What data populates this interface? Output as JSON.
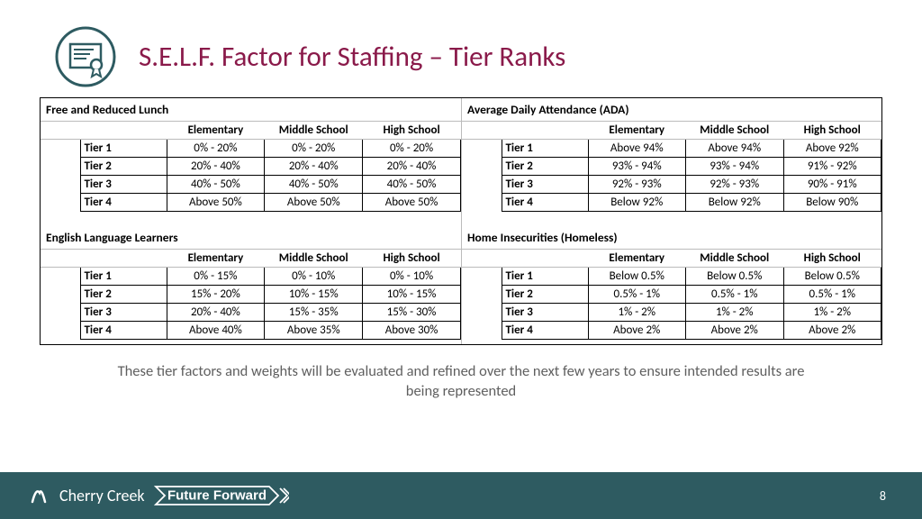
{
  "colors": {
    "title": "#8a1a4a",
    "icon_stroke": "#2e5b61",
    "caption": "#5f5f5f",
    "footer_bg": "#2e5b61",
    "footer_text": "#ffffff"
  },
  "title": "S.E.L.F. Factor for Staffing – Tier Ranks",
  "column_headers": [
    "Elementary",
    "Middle School",
    "High School"
  ],
  "tier_labels": [
    "Tier 1",
    "Tier 2",
    "Tier 3",
    "Tier 4"
  ],
  "blocks": [
    {
      "title": "Free and Reduced Lunch",
      "rows": [
        [
          "0% - 20%",
          "0% - 20%",
          "0% - 20%"
        ],
        [
          "20% - 40%",
          "20% - 40%",
          "20% - 40%"
        ],
        [
          "40% - 50%",
          "40% - 50%",
          "40% - 50%"
        ],
        [
          "Above 50%",
          "Above 50%",
          "Above 50%"
        ]
      ]
    },
    {
      "title": "Average Daily Attendance (ADA)",
      "rows": [
        [
          "Above 94%",
          "Above 94%",
          "Above 92%"
        ],
        [
          "93% - 94%",
          "93% - 94%",
          "91% - 92%"
        ],
        [
          "92% - 93%",
          "92% - 93%",
          "90% - 91%"
        ],
        [
          "Below 92%",
          "Below 92%",
          "Below 90%"
        ]
      ]
    },
    {
      "title": "English Language Learners",
      "rows": [
        [
          "0% - 15%",
          "0% - 10%",
          "0% - 10%"
        ],
        [
          "15% - 20%",
          "10% - 15%",
          "10% - 15%"
        ],
        [
          "20% - 40%",
          "15% - 35%",
          "15% - 30%"
        ],
        [
          "Above 40%",
          "Above 35%",
          "Above 30%"
        ]
      ]
    },
    {
      "title": "Home Insecurities (Homeless)",
      "rows": [
        [
          "Below 0.5%",
          "Below 0.5%",
          "Below 0.5%"
        ],
        [
          "0.5% - 1%",
          "0.5% - 1%",
          "0.5% - 1%"
        ],
        [
          "1% - 2%",
          "1% - 2%",
          "1% - 2%"
        ],
        [
          "Above 2%",
          "Above 2%",
          "Above 2%"
        ]
      ]
    }
  ],
  "caption": "These tier factors and weights will be evaluated and refined over the next few years to ensure intended results are being represented",
  "footer": {
    "brand_left": "Cherry Creek",
    "brand_right": "Future Forward",
    "page": "8"
  }
}
